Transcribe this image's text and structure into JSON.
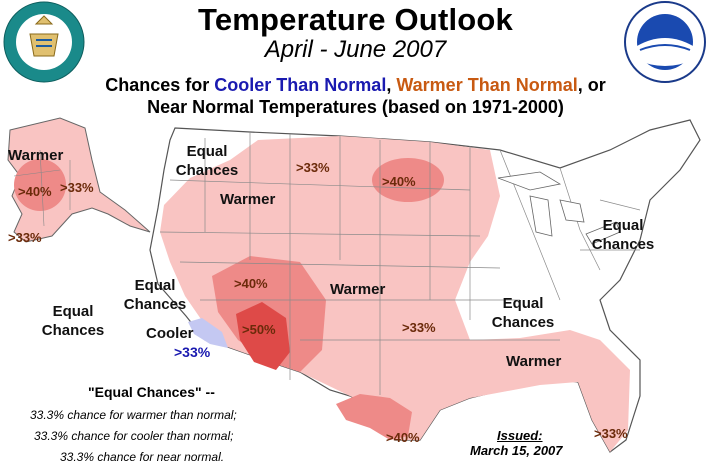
{
  "header": {
    "title": "Temperature Outlook",
    "subtitle": "April - June 2007",
    "chances_line1_prefix": "Chances for ",
    "chances_cooler": "Cooler Than Normal",
    "chances_comma": ", ",
    "chances_warmer": "Warmer Than Normal",
    "chances_line1_suffix": ", or",
    "chances_line2": "Near Normal Temperatures (based on 1971-2000)"
  },
  "seals": {
    "commerce_icon": "department-of-commerce-seal",
    "commerce_text": "DEPARTMENT OF COMMERCE · UNITED STATES OF AMERICA",
    "noaa_icon": "noaa-logo",
    "noaa_text": "NATIONAL OCEANIC AND ATMOSPHERIC ADMINISTRATION · U.S. DEPARTMENT OF COMMERCE",
    "noaa_word": "NOAA"
  },
  "map_labels": {
    "alaska_warmer": "Warmer",
    "alaska_40": ">40%",
    "alaska_33a": ">33%",
    "alaska_33b": ">33%",
    "nw_equal_1": "Equal",
    "nw_equal_2": "Chances",
    "west_warmer": "Warmer",
    "north_33": ">33%",
    "dakota_40": ">40%",
    "ne_equal_1": "Equal",
    "ne_equal_2": "Chances",
    "sw_40": ">40%",
    "sw_50": ">50%",
    "central_warmer": "Warmer",
    "ca_equal_1": "Equal",
    "ca_equal_2": "Chances",
    "cooler": "Cooler",
    "cooler_33": ">33%",
    "ocean_equal_1": "Equal",
    "ocean_equal_2": "Chances",
    "ok_33": ">33%",
    "se_equal_1": "Equal",
    "se_equal_2": "Chances",
    "se_warmer": "Warmer",
    "tx_40": ">40%",
    "fl_33": ">33%"
  },
  "legend": {
    "heading": "\"Equal Chances\" --",
    "line1": "33.3% chance for warmer than normal;",
    "line2": "33.3% chance for cooler than normal;",
    "line3": "33.3% chance for near normal."
  },
  "issued": {
    "label": "Issued:",
    "date": "March 15, 2007"
  },
  "colors": {
    "warm_33": "#f9c4c2",
    "warm_40": "#ee8a88",
    "warm_50": "#de4a48",
    "cool_33": "#c4c8f2",
    "state_line": "#7a7a7a",
    "coast_line": "#555555"
  }
}
